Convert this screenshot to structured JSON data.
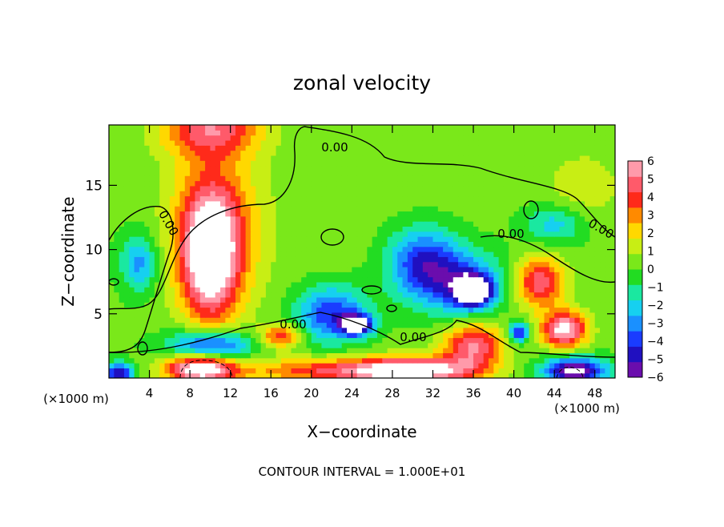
{
  "chart_data": {
    "type": "heatmap",
    "title": "zonal velocity",
    "xlabel": "X−coordinate",
    "ylabel": "Z−coordinate",
    "x_unit_left": "(×1000 m)",
    "x_unit_right": "(×1000 m)",
    "footer": "CONTOUR INTERVAL = 1.000E+01",
    "xlim": [
      0,
      50
    ],
    "ylim": [
      0,
      19.7
    ],
    "xticks": [
      4,
      8,
      12,
      16,
      20,
      24,
      28,
      32,
      36,
      40,
      44,
      48
    ],
    "xtick_labels": [
      "4",
      "8",
      "12",
      "16",
      "20",
      "24",
      "28",
      "32",
      "36",
      "40",
      "44",
      "48"
    ],
    "yticks": [
      5,
      10,
      15
    ],
    "ytick_labels": [
      "5",
      "10",
      "15"
    ],
    "colorbar": {
      "range": [
        -6,
        6
      ],
      "ticks": [
        6,
        5,
        4,
        3,
        2,
        1,
        0,
        -1,
        -2,
        -3,
        -4,
        -5,
        -6
      ],
      "tick_labels": [
        "6",
        "5",
        "4",
        "3",
        "2",
        "1",
        "0",
        "−1",
        "−2",
        "−3",
        "−4",
        "−5",
        "−6"
      ],
      "colors": [
        "#6a0dad",
        "#2010c0",
        "#1a3cff",
        "#1a90ff",
        "#16d0f0",
        "#1ae8a0",
        "#22dc22",
        "#7ae81a",
        "#c8ee14",
        "#ffd800",
        "#ff8a00",
        "#ff2a1a",
        "#ff5a6a",
        "#ff9aaa"
      ]
    },
    "contour_labels": [
      "0.00",
      "0.00",
      "0.00",
      "0.00",
      "0.00",
      "0.00"
    ],
    "field_blobs": [
      {
        "x": 25,
        "z": 10,
        "rx": 28,
        "rz": 12,
        "v": 0.4
      },
      {
        "x": 10,
        "z": 19.5,
        "rx": 5,
        "rz": 2.2,
        "v": 4.2
      },
      {
        "x": 10,
        "z": 9.5,
        "rx": 2.8,
        "rz": 4.8,
        "v": 6.5
      },
      {
        "x": 10.5,
        "z": 12,
        "rx": 4.5,
        "rz": 6.5,
        "v": 3
      },
      {
        "x": 3,
        "z": 9,
        "rx": 1.8,
        "rz": 2.2,
        "v": -3.2
      },
      {
        "x": 22,
        "z": 5,
        "rx": 3.5,
        "rz": 2.2,
        "v": -4.5
      },
      {
        "x": 24.5,
        "z": 4.2,
        "rx": 1.5,
        "rz": 0.8,
        "v": -7
      },
      {
        "x": 31,
        "z": 9.5,
        "rx": 3.5,
        "rz": 2.5,
        "v": -3.5
      },
      {
        "x": 34,
        "z": 7.5,
        "rx": 5,
        "rz": 2.5,
        "v": -4.2
      },
      {
        "x": 36,
        "z": 6.8,
        "rx": 1.8,
        "rz": 1.2,
        "v": -7.5
      },
      {
        "x": 40.5,
        "z": 3.6,
        "rx": 1,
        "rz": 0.8,
        "v": -5
      },
      {
        "x": 42.5,
        "z": 7.5,
        "rx": 2.5,
        "rz": 2,
        "v": 4.8
      },
      {
        "x": 45,
        "z": 3.8,
        "rx": 2.2,
        "rz": 1.4,
        "v": 6.5
      },
      {
        "x": 10,
        "z": 2.5,
        "rx": 4,
        "rz": 1.2,
        "v": -5.5
      },
      {
        "x": 9,
        "z": 0.8,
        "rx": 3.5,
        "rz": 1.2,
        "v": 7
      },
      {
        "x": 21,
        "z": 0.6,
        "rx": 8,
        "rz": 1,
        "v": 3.5
      },
      {
        "x": 30,
        "z": 0.6,
        "rx": 6,
        "rz": 1,
        "v": 7
      },
      {
        "x": 36,
        "z": 2.5,
        "rx": 3,
        "rz": 1.8,
        "v": 5
      },
      {
        "x": 46,
        "z": 0.6,
        "rx": 3,
        "rz": 1,
        "v": -7
      },
      {
        "x": 1,
        "z": 0.4,
        "rx": 1.5,
        "rz": 0.8,
        "v": -5
      },
      {
        "x": 17,
        "z": 3.3,
        "rx": 2,
        "rz": 0.9,
        "v": 4
      },
      {
        "x": 47,
        "z": 15,
        "rx": 4,
        "rz": 3,
        "v": 1.2
      },
      {
        "x": 44,
        "z": 12,
        "rx": 3,
        "rz": 1.5,
        "v": -2.5
      }
    ]
  }
}
